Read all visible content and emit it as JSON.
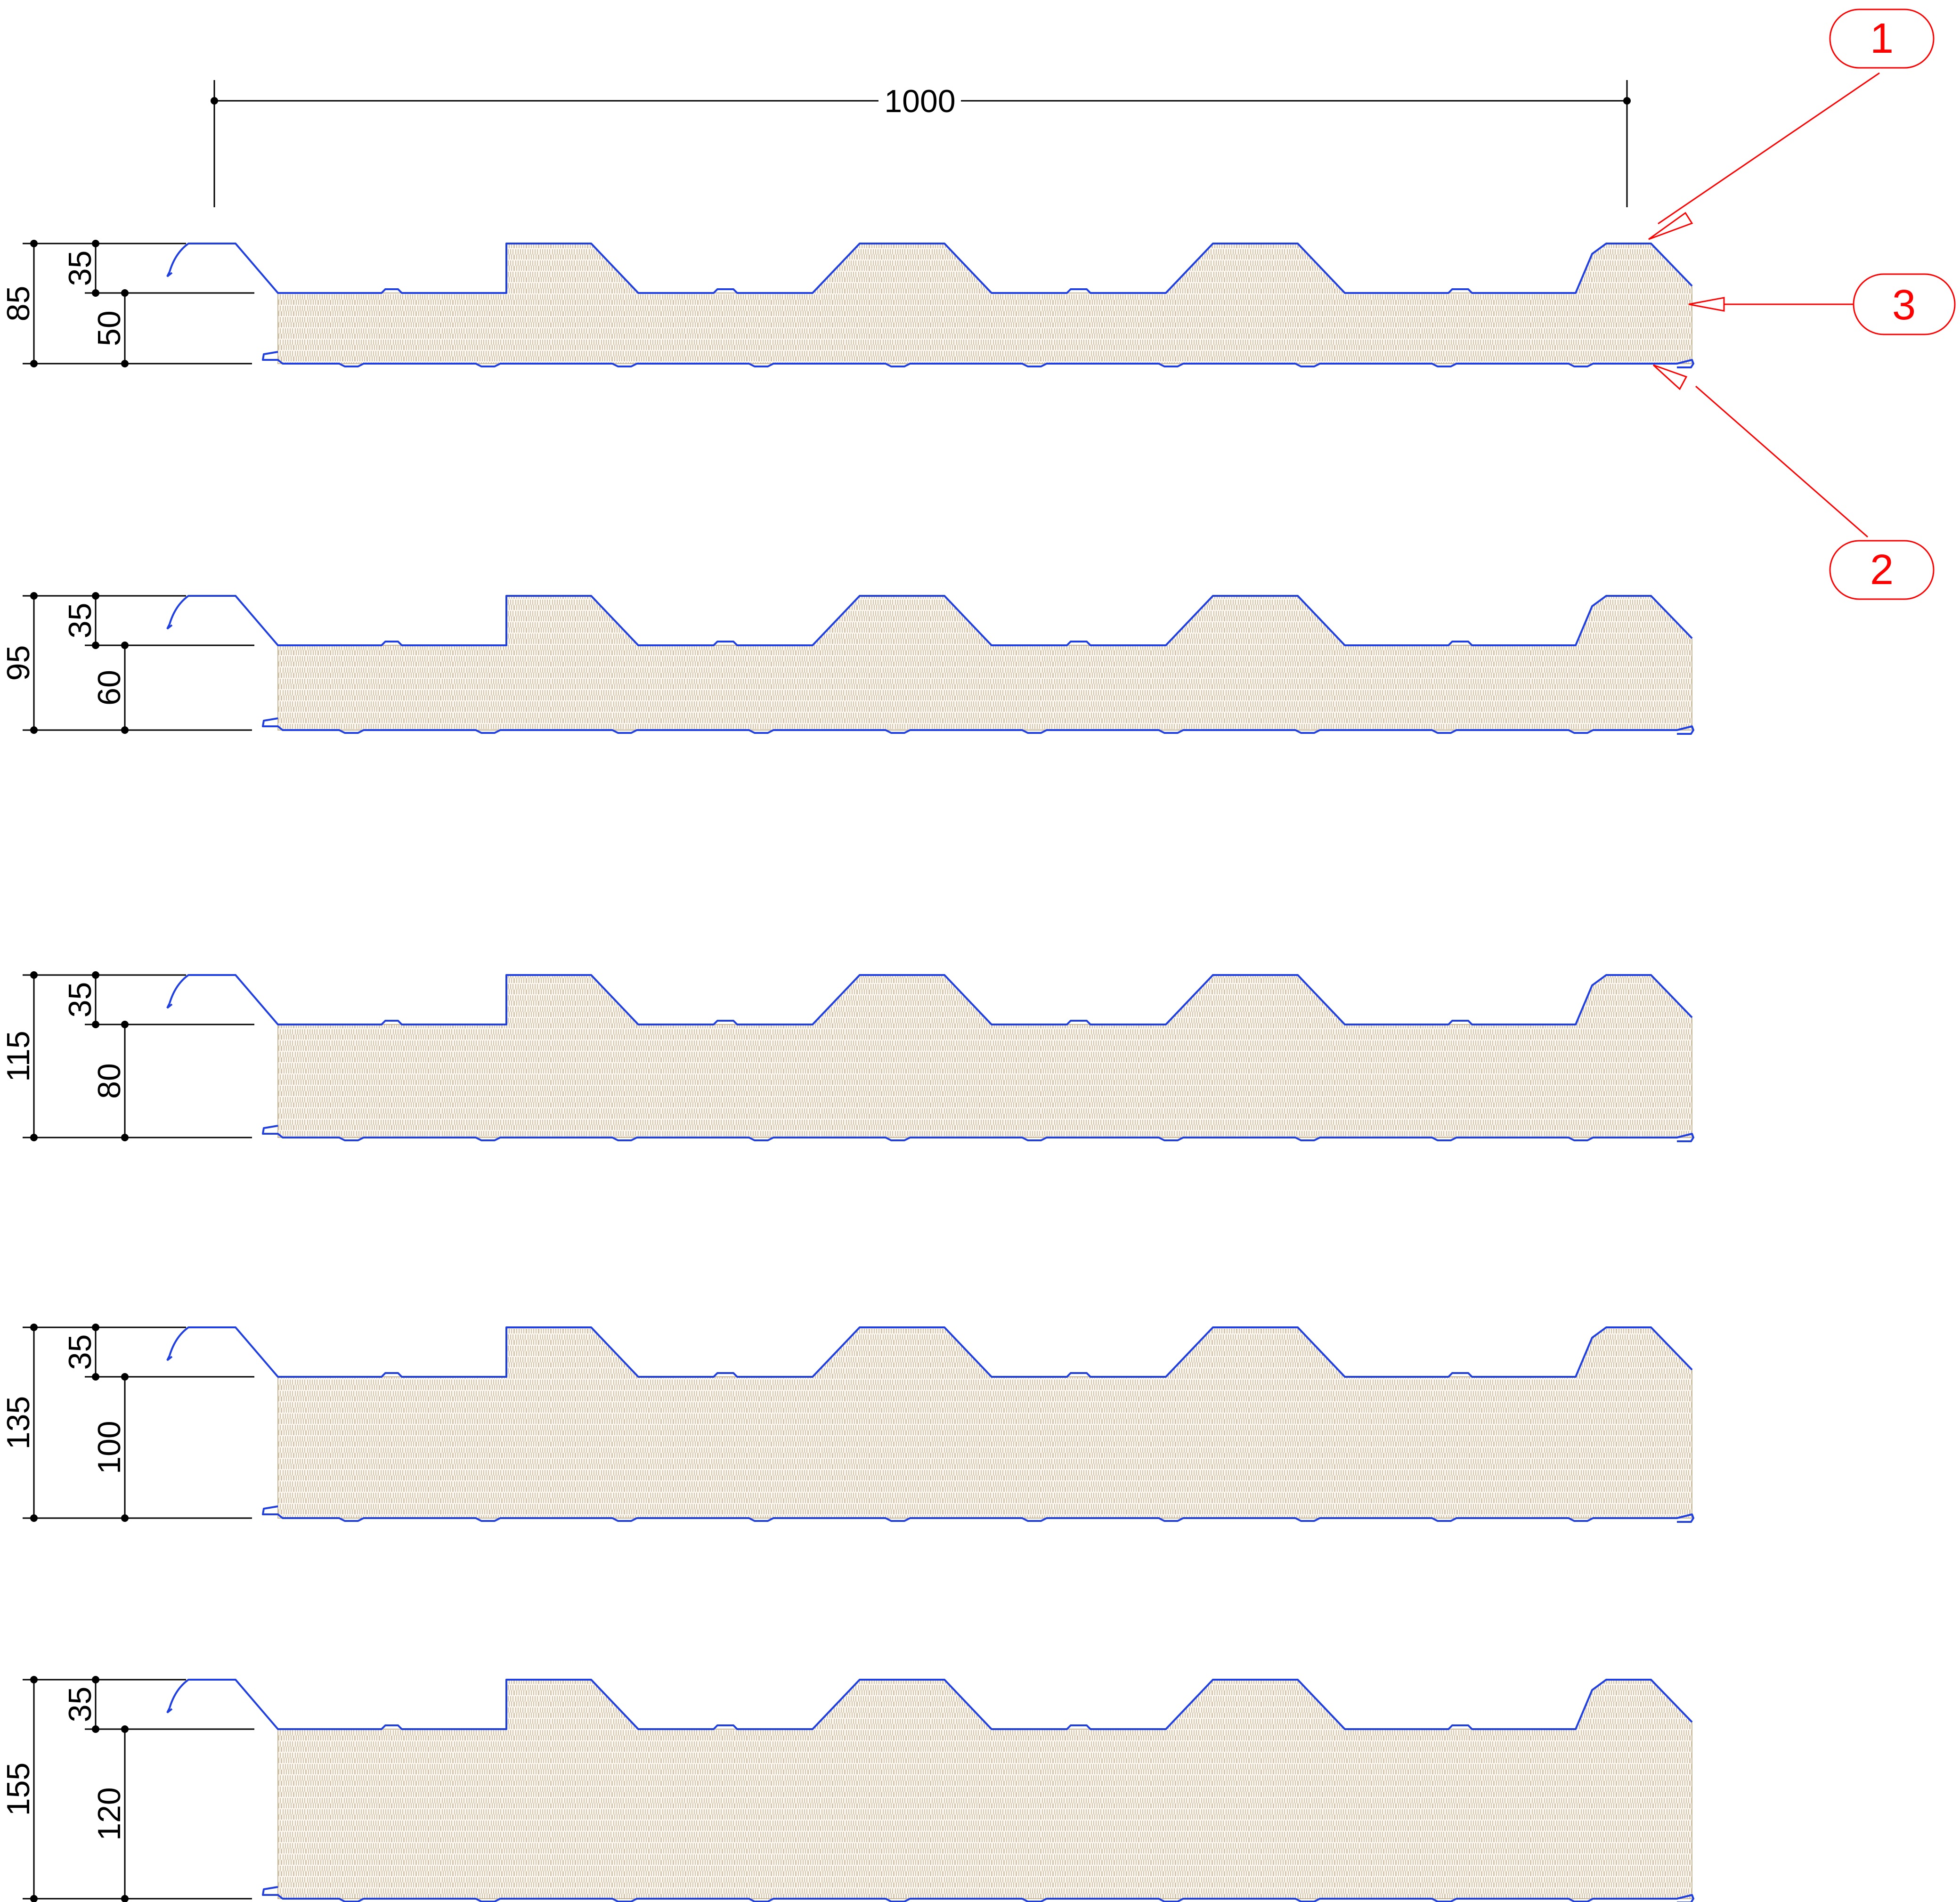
{
  "colors": {
    "sheet": "#1f3fe0",
    "dimension": "#000000",
    "callout": "#ff0000",
    "foam_fill": "#fbf8f2",
    "foam_hatch": "#c9b89a"
  },
  "overall_width": {
    "label": "1000"
  },
  "callouts": [
    {
      "id": "1",
      "label": "1",
      "target": "top steel sheet"
    },
    {
      "id": "2",
      "label": "2",
      "target": "bottom steel sheet"
    },
    {
      "id": "3",
      "label": "3",
      "target": "insulation core"
    }
  ],
  "panels": [
    {
      "total": 85,
      "total_label": "85",
      "rib_label": "35",
      "core_label": "50"
    },
    {
      "total": 95,
      "total_label": "95",
      "rib_label": "35",
      "core_label": "60"
    },
    {
      "total": 115,
      "total_label": "115",
      "rib_label": "35",
      "core_label": "80"
    },
    {
      "total": 135,
      "total_label": "135",
      "rib_label": "35",
      "core_label": "100"
    },
    {
      "total": 155,
      "total_label": "155",
      "rib_label": "35",
      "core_label": "120"
    }
  ]
}
